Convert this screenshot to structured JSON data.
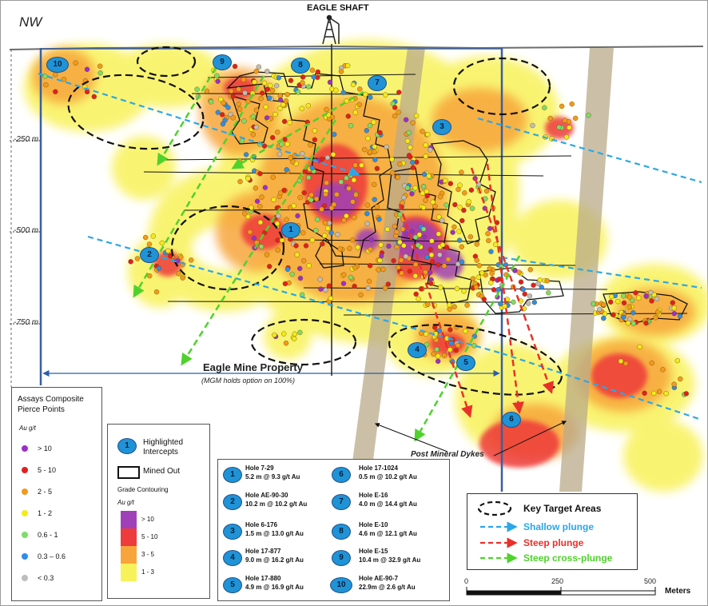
{
  "map": {
    "direction": "NW",
    "shaft_label": "EAGLE SHAFT",
    "depth_labels": [
      "-250 m",
      "-500 m",
      "-750 m"
    ],
    "property_label": "Eagle Mine Property",
    "property_note": "(MGM holds option on 100%)",
    "dykes_label": "Post Mineral Dykes",
    "intercept_markers": [
      "1",
      "2",
      "3",
      "4",
      "5",
      "6",
      "7",
      "8",
      "9",
      "10"
    ]
  },
  "legend_assays": {
    "title_line1": "Assays Composite",
    "title_line2": "Pierce Points",
    "unit": "Au g/t",
    "items": [
      {
        "label": "> 10",
        "color": "#9b30c8"
      },
      {
        "label": "5 - 10",
        "color": "#e02020"
      },
      {
        "label": "2 - 5",
        "color": "#f29a1c"
      },
      {
        "label": "1 - 2",
        "color": "#f3ea1a"
      },
      {
        "label": "0.6 - 1",
        "color": "#7ddc6a"
      },
      {
        "label": "0.3 – 0.6",
        "color": "#2f8de4"
      },
      {
        "label": "< 0.3",
        "color": "#bdbdbd"
      }
    ]
  },
  "legend_symbols": {
    "badge": "1",
    "highlighted_line1": "Highlighted",
    "highlighted_line2": "Intercepts",
    "mined_out": "Mined Out",
    "grade_title": "Grade Contouring",
    "unit": "Au g/t",
    "grades": [
      {
        "label": "> 10",
        "color": "#a040b8"
      },
      {
        "label": "5 - 10",
        "color": "#ee3b3b"
      },
      {
        "label": "3 - 5",
        "color": "#f7a53a"
      },
      {
        "label": "1 - 3",
        "color": "#f8f25a"
      }
    ]
  },
  "intercepts": [
    {
      "n": "1",
      "hole": "Hole  7-29",
      "result": "5.2 m @ 9.3 g/t Au"
    },
    {
      "n": "2",
      "hole": "Hole  AE-90-30",
      "result": "10.2 m @ 10.2 g/t Au"
    },
    {
      "n": "3",
      "hole": "Hole  6-176",
      "result": "1.5 m @ 13.0 g/t Au"
    },
    {
      "n": "4",
      "hole": "Hole  17-877",
      "result": "9.0 m @ 16.2 g/t Au"
    },
    {
      "n": "5",
      "hole": "Hole  17-880",
      "result": "4.9 m @ 16.9 g/t Au"
    },
    {
      "n": "6",
      "hole": "Hole  17-1024",
      "result": "0.5 m @ 10.2 g/t Au"
    },
    {
      "n": "7",
      "hole": "Hole  E-16",
      "result": "4.0 m @ 14.4 g/t Au"
    },
    {
      "n": "8",
      "hole": "Hole  E-10",
      "result": "4.6 m @ 12.1 g/t Au"
    },
    {
      "n": "9",
      "hole": "Hole  E-15",
      "result": "10.4 m @ 32.9 g/t Au"
    },
    {
      "n": "10",
      "hole": "Hole AE-90-7",
      "result": "22.9m @ 2.6 g/t Au"
    }
  ],
  "legend_targets": {
    "key_targets": "Key Target Areas",
    "shallow": "Shallow plunge",
    "steep": "Steep plunge",
    "cross": "Steep cross-plunge",
    "shallow_color": "#2ba7e6",
    "steep_color": "#e8312a",
    "cross_color": "#4fd22c"
  },
  "scale": {
    "ticks": [
      "0",
      "250",
      "500"
    ],
    "unit": "Meters"
  }
}
